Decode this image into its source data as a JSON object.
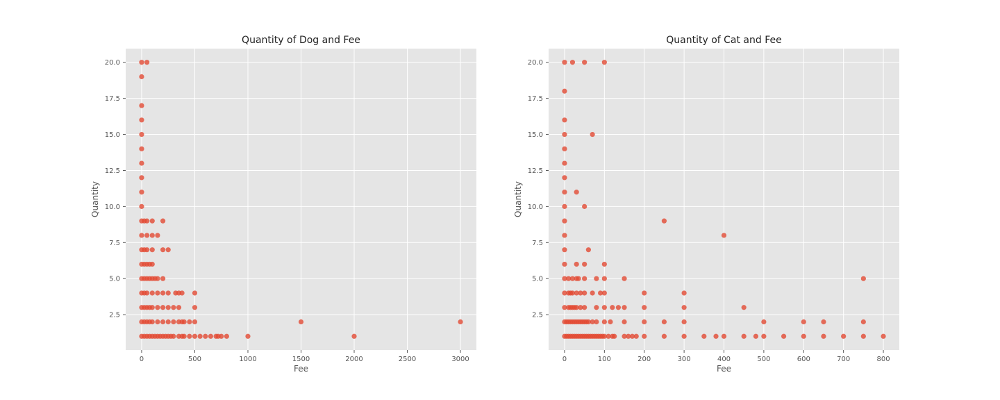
{
  "chart_data": [
    {
      "type": "scatter",
      "title": "Quantity of Dog and Fee",
      "xlabel": "Fee",
      "ylabel": "Quantity",
      "xlim": [
        -150,
        3150
      ],
      "ylim": [
        0.05,
        20.95
      ],
      "xticks": [
        0,
        500,
        1000,
        1500,
        2000,
        2500,
        3000
      ],
      "yticks": [
        2.5,
        5.0,
        7.5,
        10.0,
        12.5,
        15.0,
        17.5,
        20.0
      ],
      "xtick_labels": [
        "0",
        "500",
        "1000",
        "1500",
        "2000",
        "2500",
        "3000"
      ],
      "ytick_labels": [
        "2.5",
        "5.0",
        "7.5",
        "10.0",
        "12.5",
        "15.0",
        "17.5",
        "20.0"
      ],
      "grid": true,
      "color": "#E24A33",
      "background": "#E5E5E5",
      "points": [
        [
          0,
          20
        ],
        [
          50,
          20
        ],
        [
          0,
          19
        ],
        [
          0,
          17
        ],
        [
          0,
          16
        ],
        [
          0,
          15
        ],
        [
          0,
          14
        ],
        [
          0,
          13
        ],
        [
          0,
          12
        ],
        [
          0,
          11
        ],
        [
          0,
          10
        ],
        [
          0,
          9
        ],
        [
          25,
          9
        ],
        [
          50,
          9
        ],
        [
          100,
          9
        ],
        [
          200,
          9
        ],
        [
          0,
          8
        ],
        [
          50,
          8
        ],
        [
          100,
          8
        ],
        [
          150,
          8
        ],
        [
          0,
          7
        ],
        [
          25,
          7
        ],
        [
          50,
          7
        ],
        [
          100,
          7
        ],
        [
          200,
          7
        ],
        [
          250,
          7
        ],
        [
          0,
          6
        ],
        [
          25,
          6
        ],
        [
          50,
          6
        ],
        [
          75,
          6
        ],
        [
          100,
          6
        ],
        [
          0,
          5
        ],
        [
          25,
          5
        ],
        [
          50,
          5
        ],
        [
          75,
          5
        ],
        [
          100,
          5
        ],
        [
          125,
          5
        ],
        [
          150,
          5
        ],
        [
          200,
          5
        ],
        [
          0,
          4
        ],
        [
          25,
          4
        ],
        [
          50,
          4
        ],
        [
          100,
          4
        ],
        [
          150,
          4
        ],
        [
          200,
          4
        ],
        [
          250,
          4
        ],
        [
          320,
          4
        ],
        [
          350,
          4
        ],
        [
          380,
          4
        ],
        [
          500,
          4
        ],
        [
          0,
          3
        ],
        [
          25,
          3
        ],
        [
          50,
          3
        ],
        [
          75,
          3
        ],
        [
          100,
          3
        ],
        [
          150,
          3
        ],
        [
          200,
          3
        ],
        [
          250,
          3
        ],
        [
          300,
          3
        ],
        [
          350,
          3
        ],
        [
          500,
          3
        ],
        [
          0,
          2
        ],
        [
          25,
          2
        ],
        [
          50,
          2
        ],
        [
          75,
          2
        ],
        [
          100,
          2
        ],
        [
          150,
          2
        ],
        [
          200,
          2
        ],
        [
          250,
          2
        ],
        [
          300,
          2
        ],
        [
          350,
          2
        ],
        [
          380,
          2
        ],
        [
          400,
          2
        ],
        [
          450,
          2
        ],
        [
          500,
          2
        ],
        [
          1500,
          2
        ],
        [
          3000,
          2
        ],
        [
          0,
          1
        ],
        [
          25,
          1
        ],
        [
          50,
          1
        ],
        [
          75,
          1
        ],
        [
          100,
          1
        ],
        [
          125,
          1
        ],
        [
          150,
          1
        ],
        [
          175,
          1
        ],
        [
          200,
          1
        ],
        [
          225,
          1
        ],
        [
          250,
          1
        ],
        [
          275,
          1
        ],
        [
          300,
          1
        ],
        [
          350,
          1
        ],
        [
          380,
          1
        ],
        [
          400,
          1
        ],
        [
          450,
          1
        ],
        [
          500,
          1
        ],
        [
          550,
          1
        ],
        [
          600,
          1
        ],
        [
          650,
          1
        ],
        [
          700,
          1
        ],
        [
          720,
          1
        ],
        [
          750,
          1
        ],
        [
          800,
          1
        ],
        [
          1000,
          1
        ],
        [
          2000,
          1
        ]
      ]
    },
    {
      "type": "scatter",
      "title": "Quantity of Cat and Fee",
      "xlabel": "Fee",
      "ylabel": "Quantity",
      "xlim": [
        -40,
        840
      ],
      "ylim": [
        0.05,
        20.95
      ],
      "xticks": [
        0,
        100,
        200,
        300,
        400,
        500,
        600,
        700,
        800
      ],
      "yticks": [
        2.5,
        5.0,
        7.5,
        10.0,
        12.5,
        15.0,
        17.5,
        20.0
      ],
      "xtick_labels": [
        "0",
        "100",
        "200",
        "300",
        "400",
        "500",
        "600",
        "700",
        "800"
      ],
      "ytick_labels": [
        "2.5",
        "5.0",
        "7.5",
        "10.0",
        "12.5",
        "15.0",
        "17.5",
        "20.0"
      ],
      "grid": true,
      "color": "#E24A33",
      "background": "#E5E5E5",
      "points": [
        [
          0,
          20
        ],
        [
          20,
          20
        ],
        [
          50,
          20
        ],
        [
          100,
          20
        ],
        [
          0,
          18
        ],
        [
          0,
          16
        ],
        [
          0,
          15
        ],
        [
          70,
          15
        ],
        [
          0,
          14
        ],
        [
          0,
          13
        ],
        [
          0,
          12
        ],
        [
          0,
          11
        ],
        [
          30,
          11
        ],
        [
          0,
          10
        ],
        [
          50,
          10
        ],
        [
          0,
          9
        ],
        [
          250,
          9
        ],
        [
          0,
          8
        ],
        [
          400,
          8
        ],
        [
          0,
          7
        ],
        [
          60,
          7
        ],
        [
          0,
          6
        ],
        [
          30,
          6
        ],
        [
          50,
          6
        ],
        [
          100,
          6
        ],
        [
          0,
          5
        ],
        [
          10,
          5
        ],
        [
          20,
          5
        ],
        [
          30,
          5
        ],
        [
          35,
          5
        ],
        [
          50,
          5
        ],
        [
          80,
          5
        ],
        [
          100,
          5
        ],
        [
          150,
          5
        ],
        [
          750,
          5
        ],
        [
          0,
          4
        ],
        [
          10,
          4
        ],
        [
          15,
          4
        ],
        [
          20,
          4
        ],
        [
          30,
          4
        ],
        [
          40,
          4
        ],
        [
          50,
          4
        ],
        [
          70,
          4
        ],
        [
          90,
          4
        ],
        [
          100,
          4
        ],
        [
          200,
          4
        ],
        [
          300,
          4
        ],
        [
          0,
          3
        ],
        [
          10,
          3
        ],
        [
          15,
          3
        ],
        [
          20,
          3
        ],
        [
          25,
          3
        ],
        [
          30,
          3
        ],
        [
          40,
          3
        ],
        [
          50,
          3
        ],
        [
          80,
          3
        ],
        [
          100,
          3
        ],
        [
          120,
          3
        ],
        [
          135,
          3
        ],
        [
          150,
          3
        ],
        [
          200,
          3
        ],
        [
          300,
          3
        ],
        [
          450,
          3
        ],
        [
          0,
          2
        ],
        [
          5,
          2
        ],
        [
          10,
          2
        ],
        [
          15,
          2
        ],
        [
          20,
          2
        ],
        [
          25,
          2
        ],
        [
          30,
          2
        ],
        [
          35,
          2
        ],
        [
          40,
          2
        ],
        [
          45,
          2
        ],
        [
          50,
          2
        ],
        [
          55,
          2
        ],
        [
          60,
          2
        ],
        [
          70,
          2
        ],
        [
          80,
          2
        ],
        [
          100,
          2
        ],
        [
          115,
          2
        ],
        [
          150,
          2
        ],
        [
          200,
          2
        ],
        [
          250,
          2
        ],
        [
          300,
          2
        ],
        [
          500,
          2
        ],
        [
          600,
          2
        ],
        [
          650,
          2
        ],
        [
          750,
          2
        ],
        [
          0,
          1
        ],
        [
          5,
          1
        ],
        [
          10,
          1
        ],
        [
          15,
          1
        ],
        [
          20,
          1
        ],
        [
          25,
          1
        ],
        [
          30,
          1
        ],
        [
          35,
          1
        ],
        [
          40,
          1
        ],
        [
          45,
          1
        ],
        [
          50,
          1
        ],
        [
          55,
          1
        ],
        [
          60,
          1
        ],
        [
          65,
          1
        ],
        [
          70,
          1
        ],
        [
          75,
          1
        ],
        [
          80,
          1
        ],
        [
          85,
          1
        ],
        [
          90,
          1
        ],
        [
          95,
          1
        ],
        [
          100,
          1
        ],
        [
          110,
          1
        ],
        [
          120,
          1
        ],
        [
          125,
          1
        ],
        [
          150,
          1
        ],
        [
          160,
          1
        ],
        [
          170,
          1
        ],
        [
          180,
          1
        ],
        [
          200,
          1
        ],
        [
          250,
          1
        ],
        [
          300,
          1
        ],
        [
          350,
          1
        ],
        [
          380,
          1
        ],
        [
          400,
          1
        ],
        [
          450,
          1
        ],
        [
          480,
          1
        ],
        [
          500,
          1
        ],
        [
          550,
          1
        ],
        [
          600,
          1
        ],
        [
          650,
          1
        ],
        [
          700,
          1
        ],
        [
          750,
          1
        ],
        [
          800,
          1
        ]
      ]
    }
  ]
}
